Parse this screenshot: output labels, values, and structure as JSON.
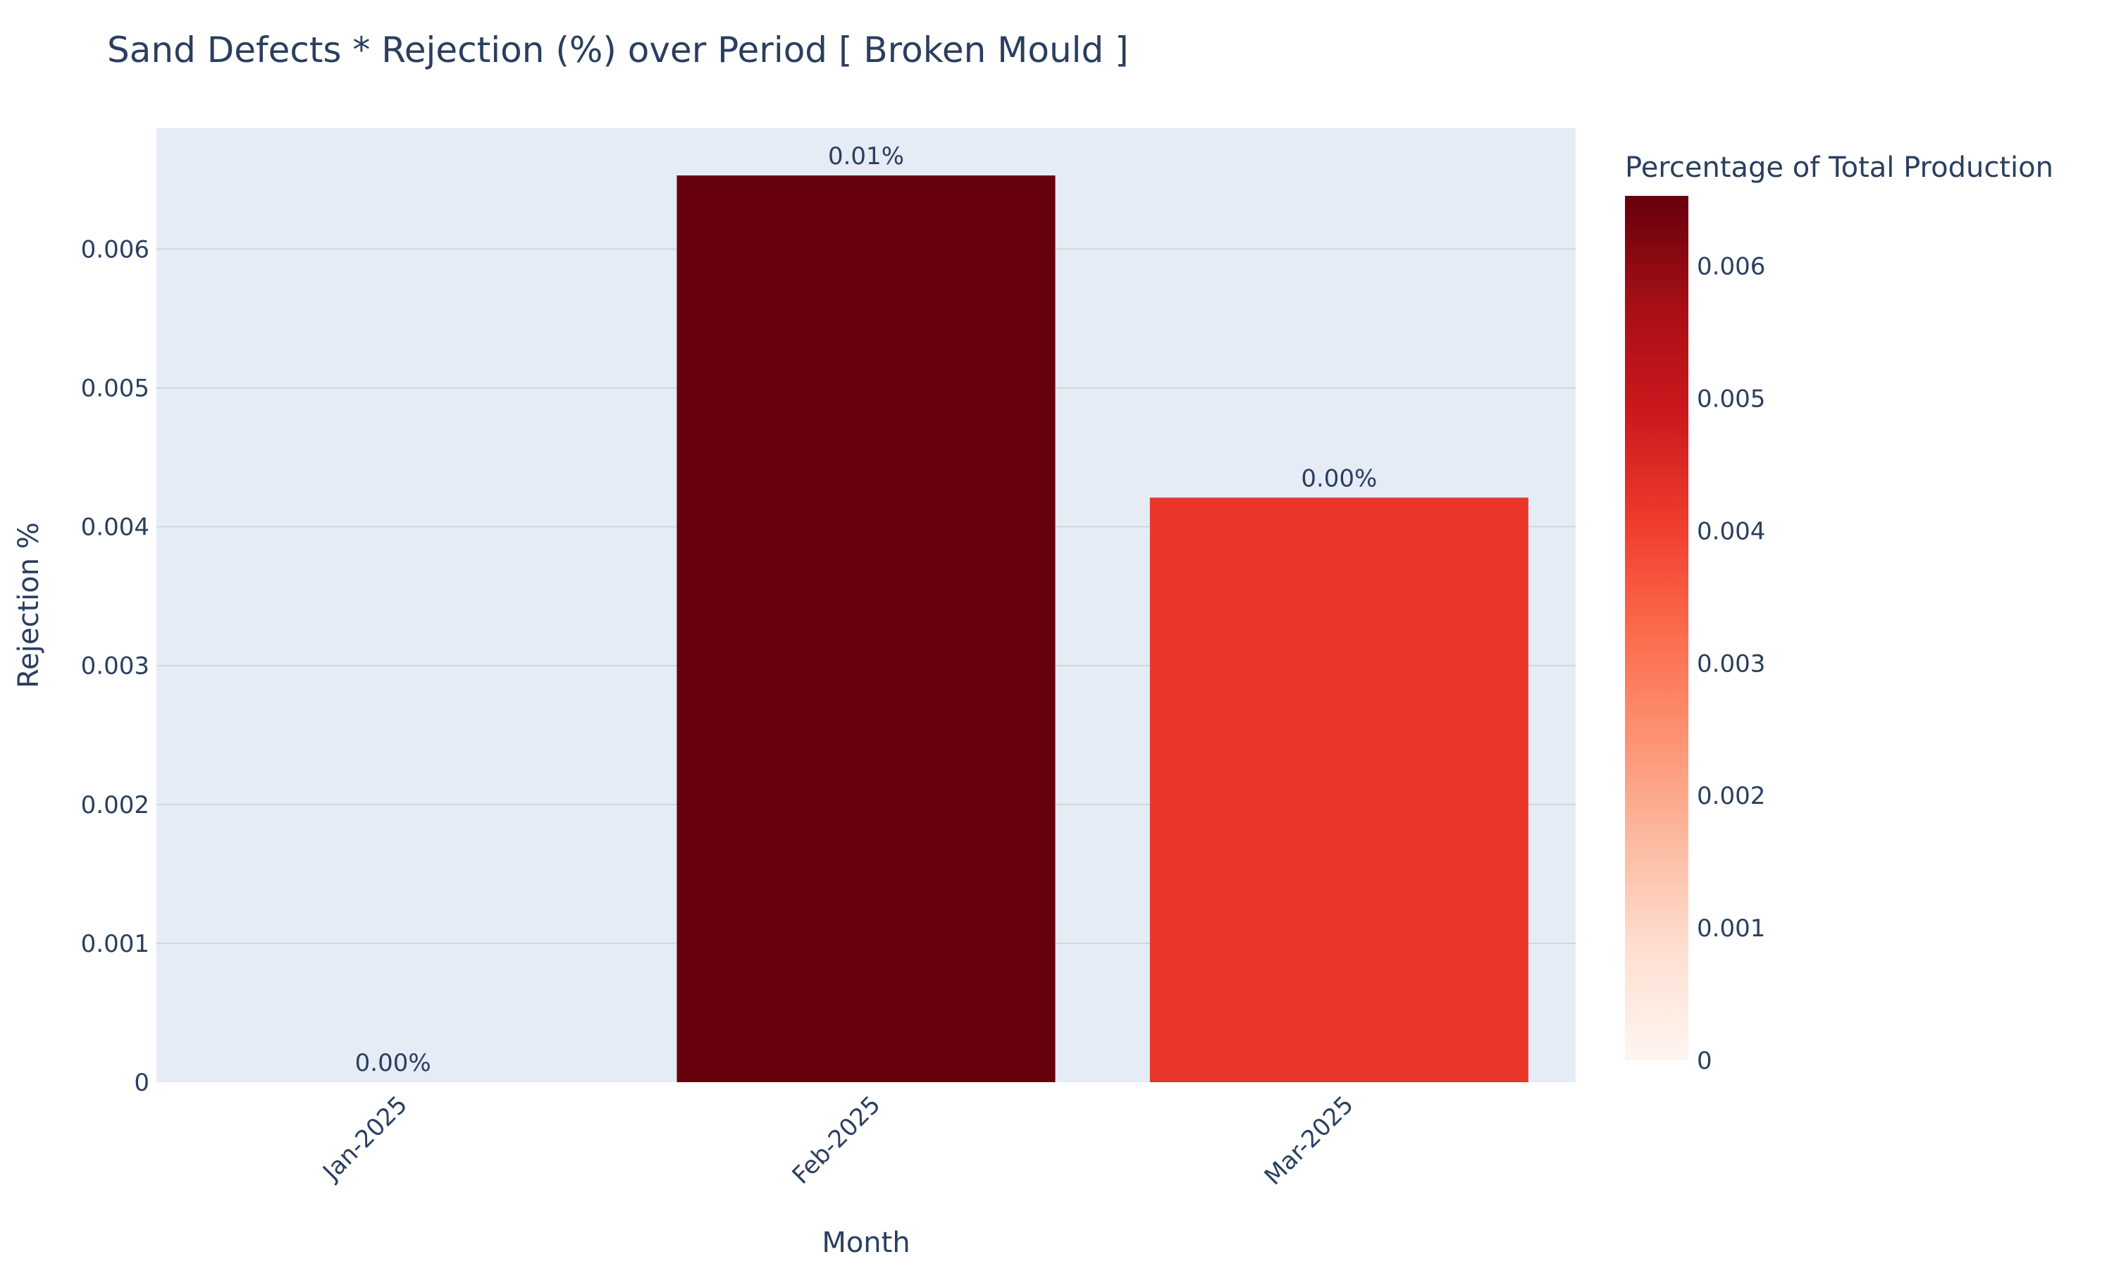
{
  "colors": {
    "plot_background": "#E5ECF6",
    "grid": "#D4D4D4",
    "text": "#2A3F5F",
    "page_background": "#FFFFFF",
    "colorscale": [
      "#FFF5F0",
      "#FEE0D2",
      "#FCBBA1",
      "#FC9272",
      "#FB6A4A",
      "#EF3B2C",
      "#CB181D",
      "#A50F15",
      "#67000D"
    ]
  },
  "chart_data": {
    "type": "bar",
    "title": "Sand Defects * Rejection (%) over Period [ Broken Mould ]",
    "xlabel": "Month",
    "ylabel": "Rejection %",
    "categories": [
      "Jan-2025",
      "Feb-2025",
      "Mar-2025"
    ],
    "values": [
      0,
      0.00653,
      0.00421
    ],
    "data_labels": [
      "0.00%",
      "0.01%",
      "0.00%"
    ],
    "ylim": [
      0,
      0.00687
    ],
    "yticks": [
      0,
      0.001,
      0.002,
      0.003,
      0.004,
      0.005,
      0.006
    ],
    "ytick_labels": [
      "0",
      "0.001",
      "0.002",
      "0.003",
      "0.004",
      "0.005",
      "0.006"
    ],
    "grid": true,
    "x_tick_rotation": "-45deg",
    "colorbar": {
      "title": "Percentage of Total Production",
      "range": [
        0,
        0.00653
      ],
      "ticks": [
        0,
        0.001,
        0.002,
        0.003,
        0.004,
        0.005,
        0.006
      ],
      "tick_labels": [
        "0",
        "0.001",
        "0.002",
        "0.003",
        "0.004",
        "0.005",
        "0.006"
      ],
      "colorscale_name": "Reds"
    }
  }
}
